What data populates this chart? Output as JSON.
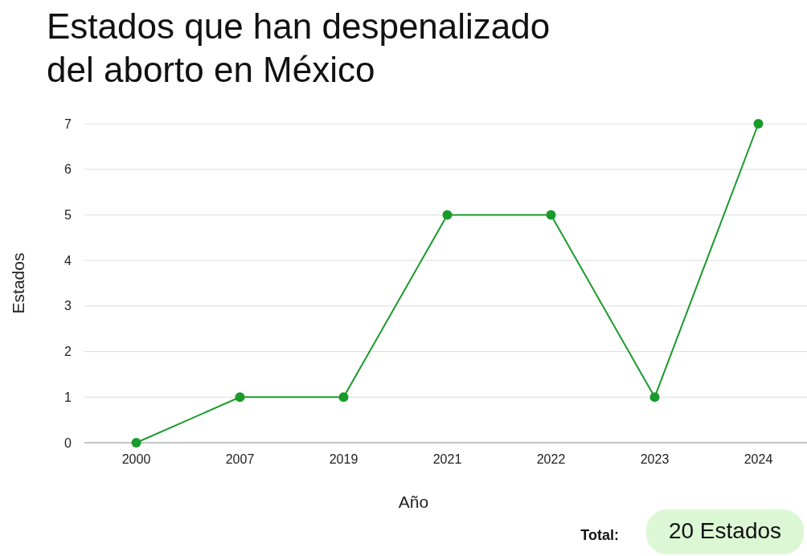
{
  "chart_data": {
    "type": "line",
    "title": "Estados que han despenalizado del aborto en México",
    "xlabel": "Año",
    "ylabel": "Estados",
    "categories": [
      "2000",
      "2007",
      "2019",
      "2021",
      "2022",
      "2023",
      "2024"
    ],
    "series": [
      {
        "color": "#1a9a2a",
        "values": [
          0,
          1,
          1,
          5,
          5,
          1,
          7
        ]
      }
    ],
    "ylim": [
      0,
      7
    ],
    "yticks": [
      0,
      1,
      2,
      3,
      4,
      5,
      6,
      7
    ],
    "grid": "y",
    "marker": "circle",
    "line_style": "solid",
    "annotations": [
      "Total:",
      "20 Estados"
    ]
  }
}
